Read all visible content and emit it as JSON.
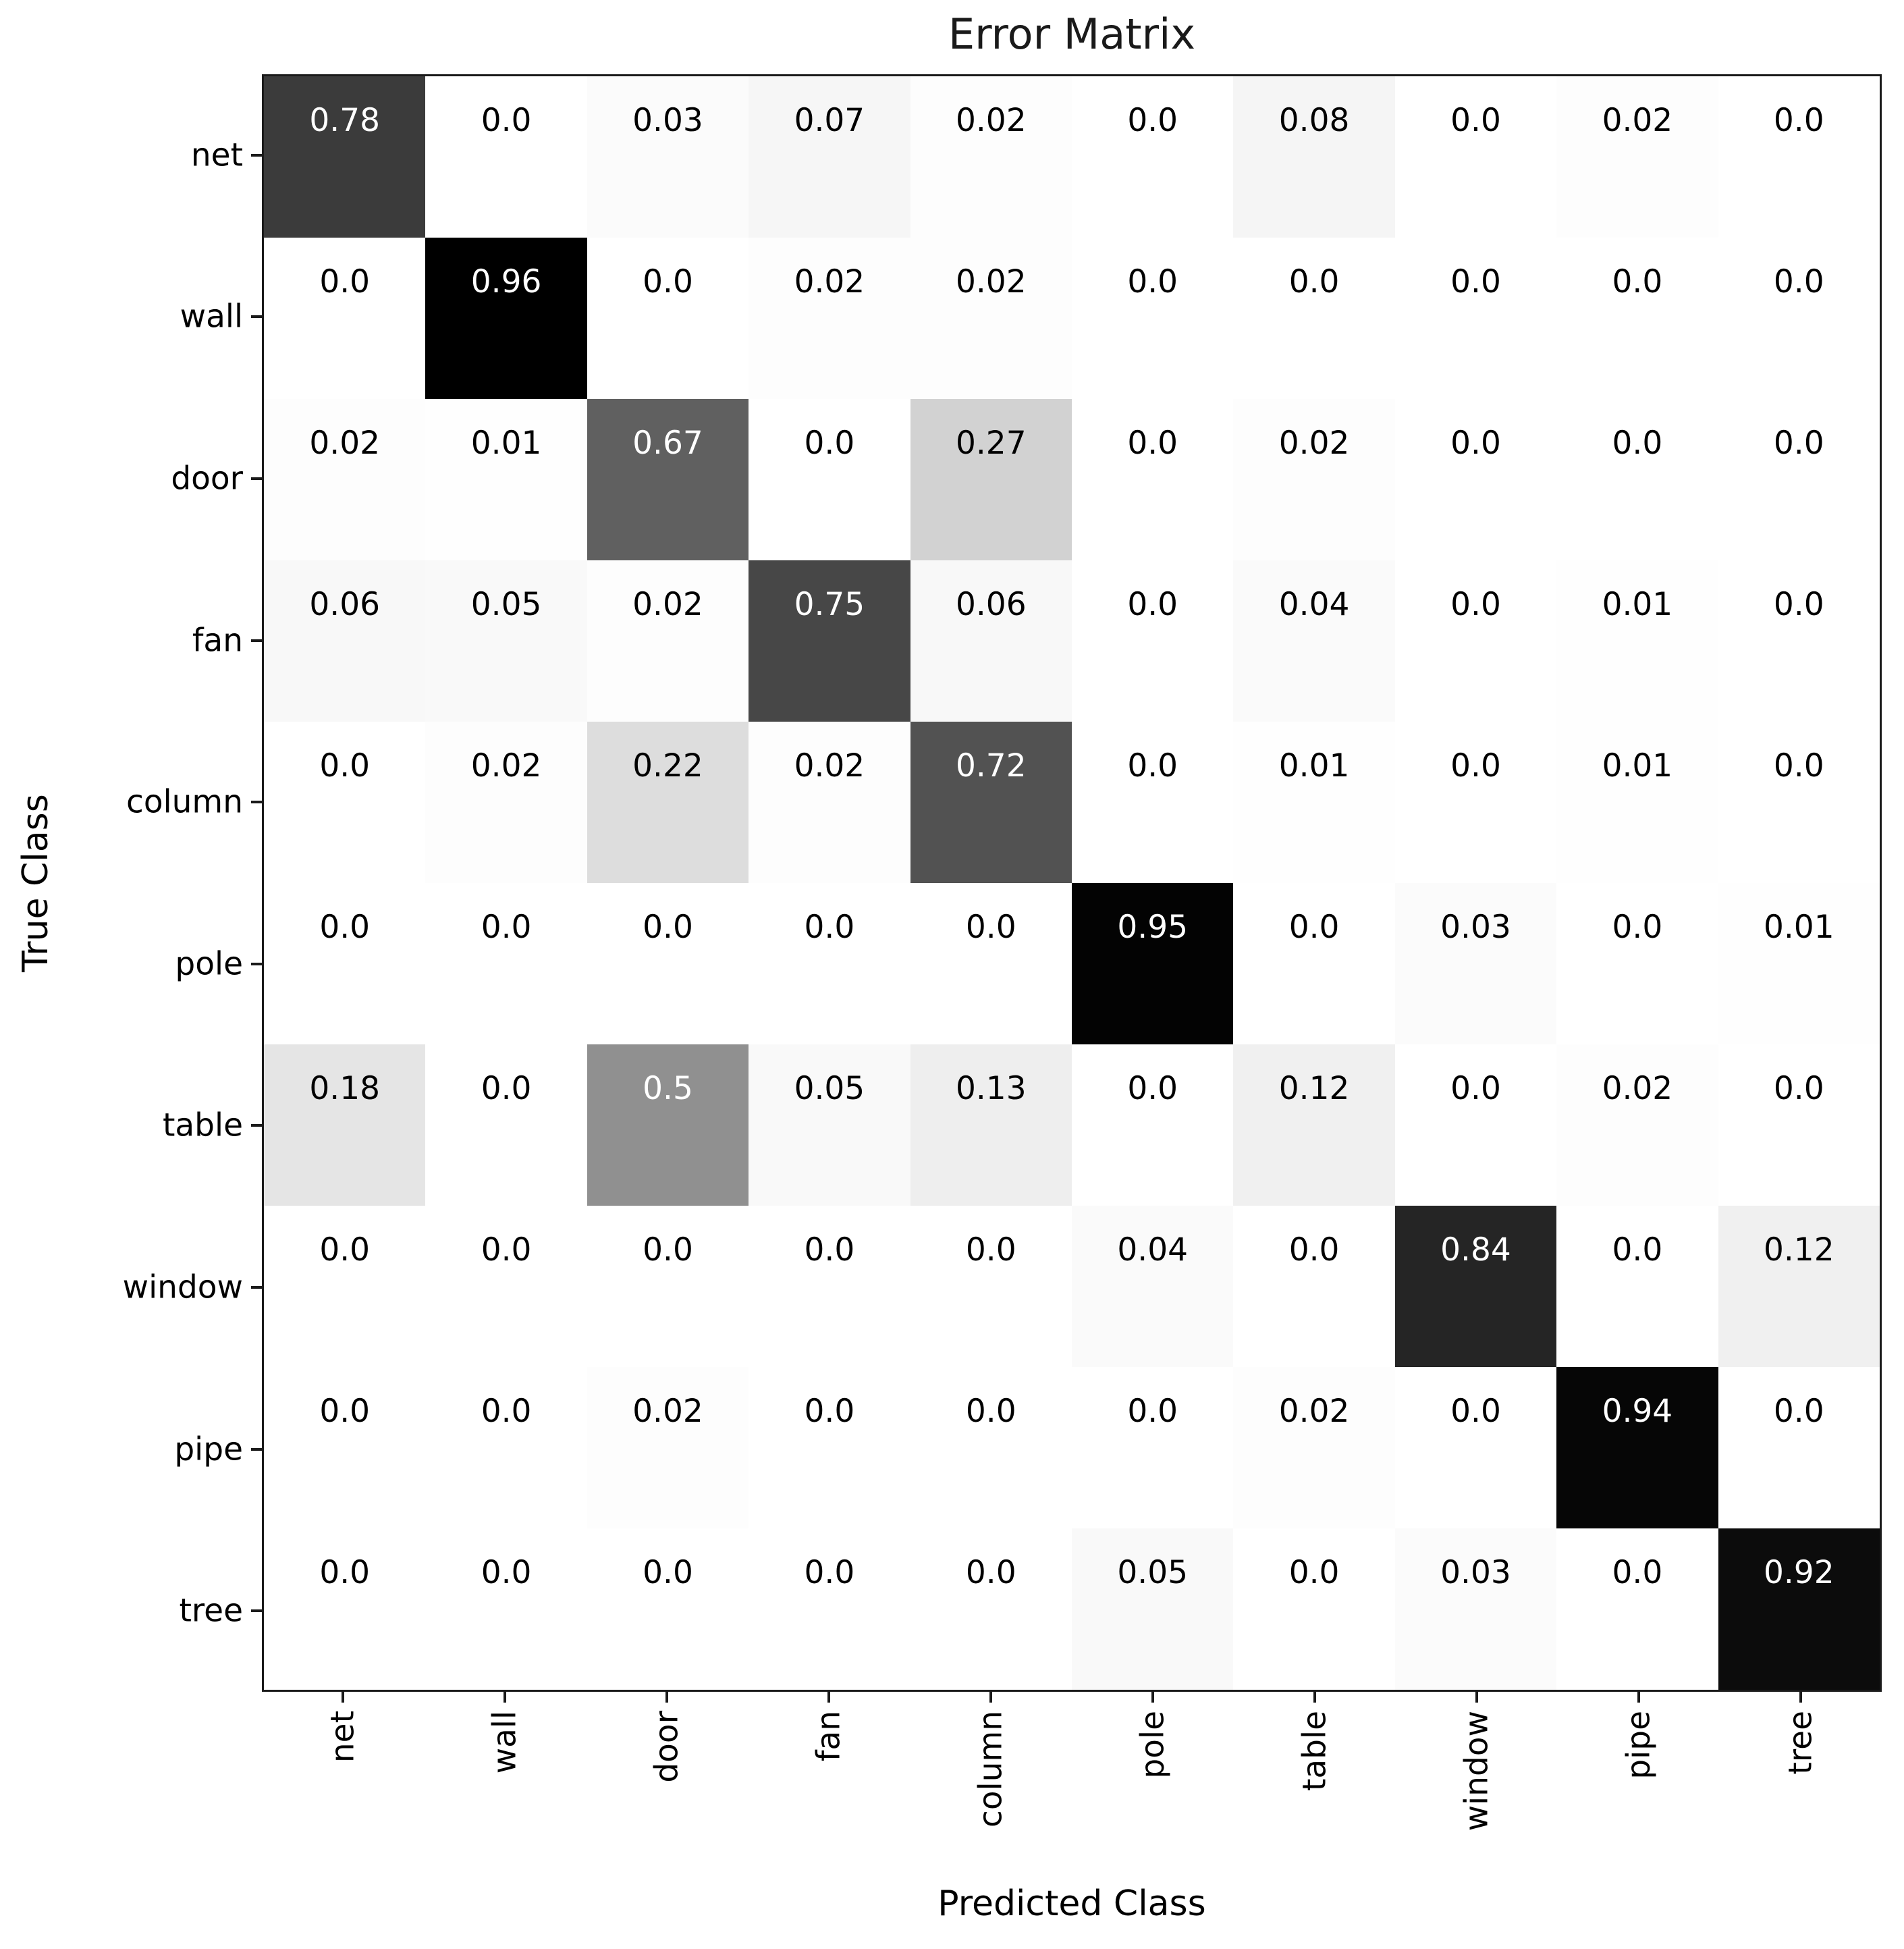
{
  "title": "Error Matrix",
  "chart_data": {
    "type": "heatmap",
    "title": "Error Matrix",
    "xlabel": "Predicted Class",
    "ylabel": "True Class",
    "categories": [
      "net",
      "wall",
      "door",
      "fan",
      "column",
      "pole",
      "table",
      "window",
      "pipe",
      "tree"
    ],
    "matrix": [
      [
        0.78,
        0.0,
        0.03,
        0.07,
        0.02,
        0.0,
        0.08,
        0.0,
        0.02,
        0.0
      ],
      [
        0.0,
        0.96,
        0.0,
        0.02,
        0.02,
        0.0,
        0.0,
        0.0,
        0.0,
        0.0
      ],
      [
        0.02,
        0.01,
        0.67,
        0.0,
        0.27,
        0.0,
        0.02,
        0.0,
        0.0,
        0.0
      ],
      [
        0.06,
        0.05,
        0.02,
        0.75,
        0.06,
        0.0,
        0.04,
        0.0,
        0.01,
        0.0
      ],
      [
        0.0,
        0.02,
        0.22,
        0.02,
        0.72,
        0.0,
        0.01,
        0.0,
        0.01,
        0.0
      ],
      [
        0.0,
        0.0,
        0.0,
        0.0,
        0.0,
        0.95,
        0.0,
        0.03,
        0.0,
        0.01
      ],
      [
        0.18,
        0.0,
        0.5,
        0.05,
        0.13,
        0.0,
        0.12,
        0.0,
        0.02,
        0.0
      ],
      [
        0.0,
        0.0,
        0.0,
        0.0,
        0.0,
        0.04,
        0.0,
        0.84,
        0.0,
        0.12
      ],
      [
        0.0,
        0.0,
        0.02,
        0.0,
        0.0,
        0.0,
        0.02,
        0.0,
        0.94,
        0.0
      ],
      [
        0.0,
        0.0,
        0.0,
        0.0,
        0.0,
        0.05,
        0.0,
        0.03,
        0.0,
        0.92
      ]
    ],
    "vmin": 0.0,
    "vmax": 0.96,
    "colormap": {
      "name": "Greys",
      "stops": [
        "#ffffff",
        "#f0f0f0",
        "#d9d9d9",
        "#bdbdbd",
        "#969696",
        "#737373",
        "#525252",
        "#252525",
        "#000000"
      ]
    },
    "cell_text_colors": {
      "dark_cell": "#ffffff",
      "light_cell": "#000000"
    },
    "text_color_threshold": 0.5,
    "grid": false,
    "legend": "none",
    "background": "#ffffff"
  }
}
